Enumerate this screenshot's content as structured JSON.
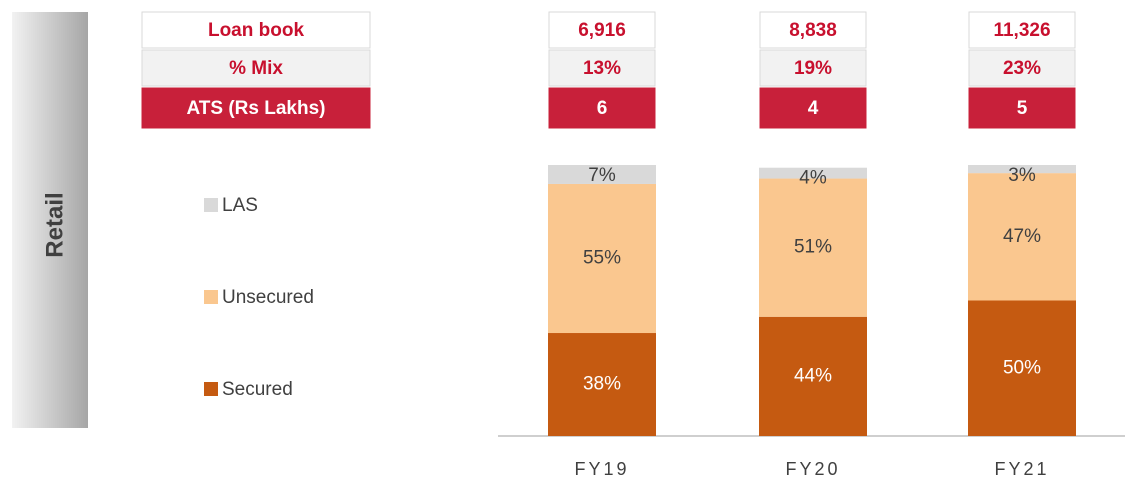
{
  "side_label": "Retail",
  "table": {
    "rows": [
      {
        "label": "Loan book",
        "values": [
          "6,916",
          "8,838",
          "11,326"
        ]
      },
      {
        "label": "% Mix",
        "values": [
          "13%",
          "19%",
          "23%"
        ]
      },
      {
        "label": "ATS (Rs Lakhs)",
        "values": [
          "6",
          "4",
          "5"
        ]
      }
    ]
  },
  "chart_data": {
    "type": "bar",
    "stacked": true,
    "categories": [
      "FY19",
      "FY20",
      "FY21"
    ],
    "series": [
      {
        "name": "Secured",
        "color": "#c55a11",
        "values": [
          38,
          44,
          50
        ],
        "value_labels": [
          "38%",
          "44%",
          "50%"
        ]
      },
      {
        "name": "Unsecured",
        "color": "#fac78f",
        "values": [
          55,
          51,
          47
        ],
        "value_labels": [
          "55%",
          "51%",
          "47%"
        ]
      },
      {
        "name": "LAS",
        "color": "#d9d9d9",
        "values": [
          7,
          4,
          3
        ],
        "value_labels": [
          "7%",
          "4%",
          "3%"
        ]
      }
    ],
    "ylim": [
      0,
      100
    ]
  }
}
